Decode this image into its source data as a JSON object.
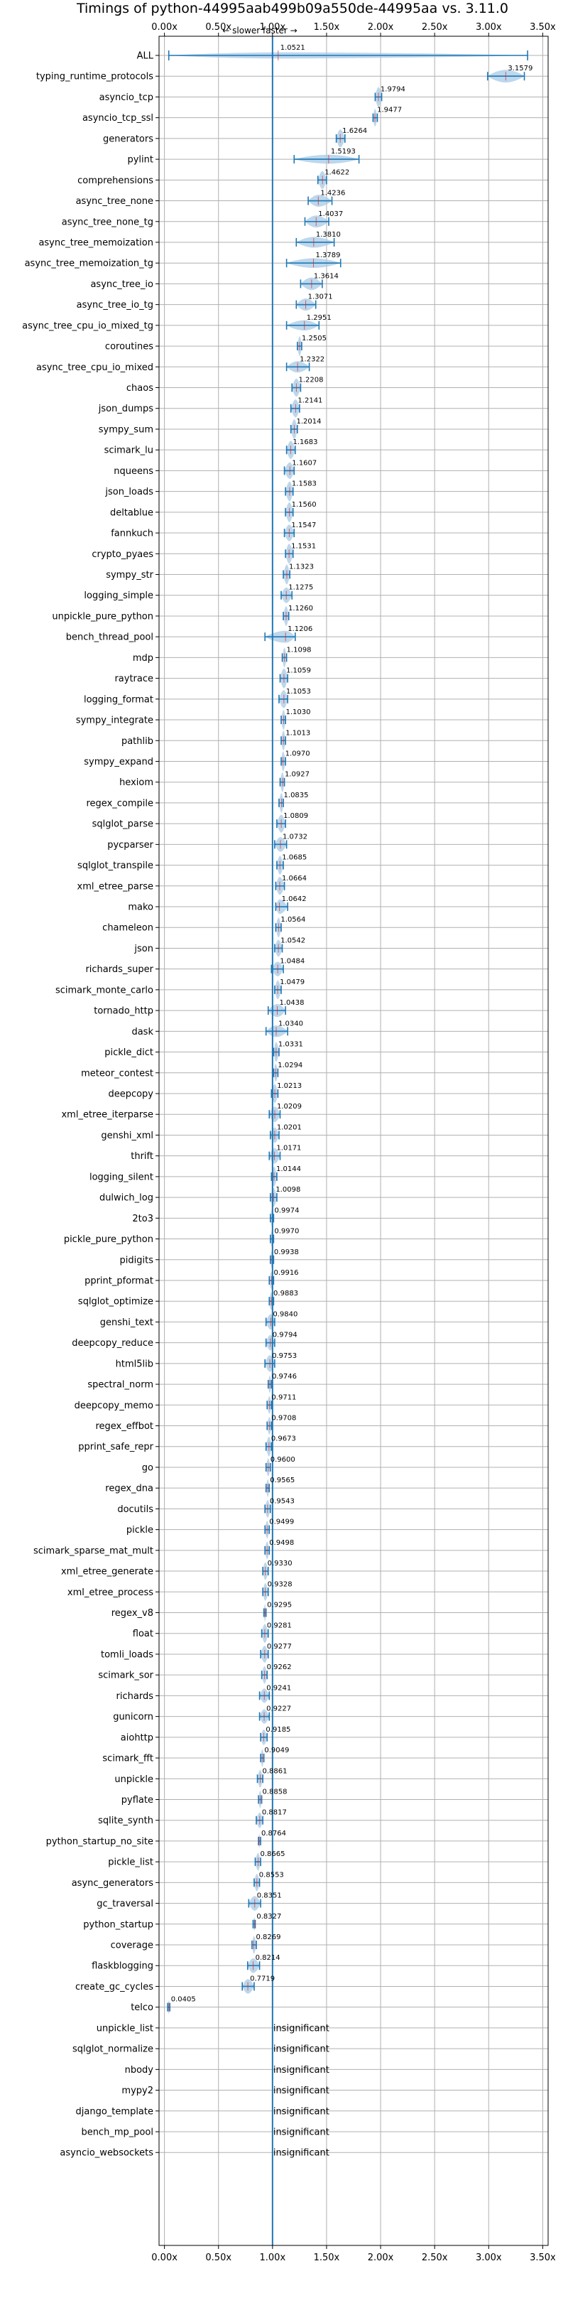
{
  "chart_data": {
    "type": "violin",
    "title": "Timings of python-44995aab499b09a550de-44995aa vs. 3.11.0",
    "direction_label": "← slower  faster →",
    "xlim": [
      -0.05,
      3.55
    ],
    "x_ticks": [
      0.0,
      0.5,
      1.0,
      1.5,
      2.0,
      2.5,
      3.0,
      3.5
    ],
    "x_tick_labels": [
      "0.00x",
      "0.50x",
      "1.00x",
      "1.50x",
      "2.00x",
      "2.50x",
      "3.00x",
      "3.50x"
    ],
    "reference_line": 1.0,
    "grid": true,
    "colors": {
      "violin": "#a7c9e6",
      "line": "#1f77b4",
      "median": "#d62728",
      "grid": "#b0b0b0"
    },
    "insignificant_label": "insignificant",
    "benchmarks": [
      {
        "name": "ALL",
        "label": "1.0521",
        "value": 1.0521,
        "min": 0.04,
        "max": 3.36,
        "spread": 0.08
      },
      {
        "name": "typing_runtime_protocols",
        "label": "3.1579",
        "value": 3.1579,
        "min": 2.99,
        "max": 3.33,
        "spread": 0.12
      },
      {
        "name": "asyncio_tcp",
        "label": "1.9794",
        "value": 1.9794,
        "min": 1.95,
        "max": 2.01,
        "spread": 0.05
      },
      {
        "name": "asyncio_tcp_ssl",
        "label": "1.9477",
        "value": 1.9477,
        "min": 1.93,
        "max": 1.97,
        "spread": 0.03
      },
      {
        "name": "generators",
        "label": "1.6264",
        "value": 1.6264,
        "min": 1.59,
        "max": 1.67,
        "spread": 0.05
      },
      {
        "name": "pylint",
        "label": "1.5193",
        "value": 1.5193,
        "min": 1.2,
        "max": 1.8,
        "spread": 0.1
      },
      {
        "name": "comprehensions",
        "label": "1.4622",
        "value": 1.4622,
        "min": 1.42,
        "max": 1.5,
        "spread": 0.05
      },
      {
        "name": "async_tree_none",
        "label": "1.4236",
        "value": 1.4236,
        "min": 1.33,
        "max": 1.55,
        "spread": 0.07
      },
      {
        "name": "async_tree_none_tg",
        "label": "1.4037",
        "value": 1.4037,
        "min": 1.3,
        "max": 1.52,
        "spread": 0.07
      },
      {
        "name": "async_tree_memoization",
        "label": "1.3810",
        "value": 1.381,
        "min": 1.22,
        "max": 1.57,
        "spread": 0.09
      },
      {
        "name": "async_tree_memoization_tg",
        "label": "1.3789",
        "value": 1.3789,
        "min": 1.13,
        "max": 1.63,
        "spread": 0.1
      },
      {
        "name": "async_tree_io",
        "label": "1.3614",
        "value": 1.3614,
        "min": 1.26,
        "max": 1.46,
        "spread": 0.07
      },
      {
        "name": "async_tree_io_tg",
        "label": "1.3071",
        "value": 1.3071,
        "min": 1.22,
        "max": 1.4,
        "spread": 0.06
      },
      {
        "name": "async_tree_cpu_io_mixed_tg",
        "label": "1.2951",
        "value": 1.2951,
        "min": 1.13,
        "max": 1.43,
        "spread": 0.07
      },
      {
        "name": "coroutines",
        "label": "1.2505",
        "value": 1.2505,
        "min": 1.23,
        "max": 1.27,
        "spread": 0.04
      },
      {
        "name": "async_tree_cpu_io_mixed",
        "label": "1.2322",
        "value": 1.2322,
        "min": 1.13,
        "max": 1.34,
        "spread": 0.06
      },
      {
        "name": "chaos",
        "label": "1.2208",
        "value": 1.2208,
        "min": 1.18,
        "max": 1.26,
        "spread": 0.05
      },
      {
        "name": "json_dumps",
        "label": "1.2141",
        "value": 1.2141,
        "min": 1.17,
        "max": 1.25,
        "spread": 0.05
      },
      {
        "name": "sympy_sum",
        "label": "1.2014",
        "value": 1.2014,
        "min": 1.17,
        "max": 1.23,
        "spread": 0.05
      },
      {
        "name": "scimark_lu",
        "label": "1.1683",
        "value": 1.1683,
        "min": 1.13,
        "max": 1.21,
        "spread": 0.05
      },
      {
        "name": "nqueens",
        "label": "1.1607",
        "value": 1.1607,
        "min": 1.11,
        "max": 1.2,
        "spread": 0.05
      },
      {
        "name": "json_loads",
        "label": "1.1583",
        "value": 1.1583,
        "min": 1.12,
        "max": 1.19,
        "spread": 0.05
      },
      {
        "name": "deltablue",
        "label": "1.1560",
        "value": 1.156,
        "min": 1.12,
        "max": 1.19,
        "spread": 0.05
      },
      {
        "name": "fannkuch",
        "label": "1.1547",
        "value": 1.1547,
        "min": 1.11,
        "max": 1.2,
        "spread": 0.05
      },
      {
        "name": "crypto_pyaes",
        "label": "1.1531",
        "value": 1.1531,
        "min": 1.12,
        "max": 1.19,
        "spread": 0.05
      },
      {
        "name": "sympy_str",
        "label": "1.1323",
        "value": 1.1323,
        "min": 1.1,
        "max": 1.16,
        "spread": 0.05
      },
      {
        "name": "logging_simple",
        "label": "1.1275",
        "value": 1.1275,
        "min": 1.08,
        "max": 1.18,
        "spread": 0.05
      },
      {
        "name": "unpickle_pure_python",
        "label": "1.1260",
        "value": 1.126,
        "min": 1.1,
        "max": 1.15,
        "spread": 0.05
      },
      {
        "name": "bench_thread_pool",
        "label": "1.1206",
        "value": 1.1206,
        "min": 0.93,
        "max": 1.21,
        "spread": 0.09
      },
      {
        "name": "mdp",
        "label": "1.1098",
        "value": 1.1098,
        "min": 1.09,
        "max": 1.13,
        "spread": 0.04
      },
      {
        "name": "raytrace",
        "label": "1.1059",
        "value": 1.1059,
        "min": 1.07,
        "max": 1.14,
        "spread": 0.05
      },
      {
        "name": "logging_format",
        "label": "1.1053",
        "value": 1.1053,
        "min": 1.06,
        "max": 1.14,
        "spread": 0.05
      },
      {
        "name": "sympy_integrate",
        "label": "1.1030",
        "value": 1.103,
        "min": 1.08,
        "max": 1.12,
        "spread": 0.04
      },
      {
        "name": "pathlib",
        "label": "1.1013",
        "value": 1.1013,
        "min": 1.08,
        "max": 1.12,
        "spread": 0.04
      },
      {
        "name": "sympy_expand",
        "label": "1.0970",
        "value": 1.097,
        "min": 1.08,
        "max": 1.12,
        "spread": 0.04
      },
      {
        "name": "hexiom",
        "label": "1.0927",
        "value": 1.0927,
        "min": 1.07,
        "max": 1.11,
        "spread": 0.04
      },
      {
        "name": "regex_compile",
        "label": "1.0835",
        "value": 1.0835,
        "min": 1.06,
        "max": 1.1,
        "spread": 0.04
      },
      {
        "name": "sqlglot_parse",
        "label": "1.0809",
        "value": 1.0809,
        "min": 1.04,
        "max": 1.12,
        "spread": 0.05
      },
      {
        "name": "pycparser",
        "label": "1.0732",
        "value": 1.0732,
        "min": 1.02,
        "max": 1.13,
        "spread": 0.05
      },
      {
        "name": "sqlglot_transpile",
        "label": "1.0685",
        "value": 1.0685,
        "min": 1.04,
        "max": 1.1,
        "spread": 0.04
      },
      {
        "name": "xml_etree_parse",
        "label": "1.0664",
        "value": 1.0664,
        "min": 1.03,
        "max": 1.11,
        "spread": 0.05
      },
      {
        "name": "mako",
        "label": "1.0642",
        "value": 1.0642,
        "min": 1.03,
        "max": 1.14,
        "spread": 0.05
      },
      {
        "name": "chameleon",
        "label": "1.0564",
        "value": 1.0564,
        "min": 1.03,
        "max": 1.08,
        "spread": 0.04
      },
      {
        "name": "json",
        "label": "1.0542",
        "value": 1.0542,
        "min": 1.02,
        "max": 1.09,
        "spread": 0.04
      },
      {
        "name": "richards_super",
        "label": "1.0484",
        "value": 1.0484,
        "min": 0.99,
        "max": 1.1,
        "spread": 0.05
      },
      {
        "name": "scimark_monte_carlo",
        "label": "1.0479",
        "value": 1.0479,
        "min": 1.02,
        "max": 1.08,
        "spread": 0.04
      },
      {
        "name": "tornado_http",
        "label": "1.0438",
        "value": 1.0438,
        "min": 0.96,
        "max": 1.12,
        "spread": 0.06
      },
      {
        "name": "dask",
        "label": "1.0340",
        "value": 1.034,
        "min": 0.94,
        "max": 1.14,
        "spread": 0.06
      },
      {
        "name": "pickle_dict",
        "label": "1.0331",
        "value": 1.0331,
        "min": 1.01,
        "max": 1.06,
        "spread": 0.04
      },
      {
        "name": "meteor_contest",
        "label": "1.0294",
        "value": 1.0294,
        "min": 1.01,
        "max": 1.05,
        "spread": 0.03
      },
      {
        "name": "deepcopy",
        "label": "1.0213",
        "value": 1.0213,
        "min": 0.99,
        "max": 1.05,
        "spread": 0.04
      },
      {
        "name": "xml_etree_iterparse",
        "label": "1.0209",
        "value": 1.0209,
        "min": 0.97,
        "max": 1.07,
        "spread": 0.05
      },
      {
        "name": "genshi_xml",
        "label": "1.0201",
        "value": 1.0201,
        "min": 0.98,
        "max": 1.06,
        "spread": 0.04
      },
      {
        "name": "thrift",
        "label": "1.0171",
        "value": 1.0171,
        "min": 0.97,
        "max": 1.07,
        "spread": 0.05
      },
      {
        "name": "logging_silent",
        "label": "1.0144",
        "value": 1.0144,
        "min": 0.99,
        "max": 1.04,
        "spread": 0.04
      },
      {
        "name": "dulwich_log",
        "label": "1.0098",
        "value": 1.0098,
        "min": 0.98,
        "max": 1.04,
        "spread": 0.04
      },
      {
        "name": "2to3",
        "label": "0.9974",
        "value": 0.9974,
        "min": 0.98,
        "max": 1.01,
        "spread": 0.03
      },
      {
        "name": "pickle_pure_python",
        "label": "0.9970",
        "value": 0.997,
        "min": 0.98,
        "max": 1.01,
        "spread": 0.03
      },
      {
        "name": "pidigits",
        "label": "0.9938",
        "value": 0.9938,
        "min": 0.98,
        "max": 1.01,
        "spread": 0.03
      },
      {
        "name": "pprint_pformat",
        "label": "0.9916",
        "value": 0.9916,
        "min": 0.97,
        "max": 1.01,
        "spread": 0.03
      },
      {
        "name": "sqlglot_optimize",
        "label": "0.9883",
        "value": 0.9883,
        "min": 0.97,
        "max": 1.01,
        "spread": 0.03
      },
      {
        "name": "genshi_text",
        "label": "0.9840",
        "value": 0.984,
        "min": 0.94,
        "max": 1.02,
        "spread": 0.04
      },
      {
        "name": "deepcopy_reduce",
        "label": "0.9794",
        "value": 0.9794,
        "min": 0.94,
        "max": 1.02,
        "spread": 0.04
      },
      {
        "name": "html5lib",
        "label": "0.9753",
        "value": 0.9753,
        "min": 0.93,
        "max": 1.02,
        "spread": 0.05
      },
      {
        "name": "spectral_norm",
        "label": "0.9746",
        "value": 0.9746,
        "min": 0.96,
        "max": 0.99,
        "spread": 0.03
      },
      {
        "name": "deepcopy_memo",
        "label": "0.9711",
        "value": 0.9711,
        "min": 0.95,
        "max": 0.99,
        "spread": 0.03
      },
      {
        "name": "regex_effbot",
        "label": "0.9708",
        "value": 0.9708,
        "min": 0.95,
        "max": 0.99,
        "spread": 0.03
      },
      {
        "name": "pprint_safe_repr",
        "label": "0.9673",
        "value": 0.9673,
        "min": 0.94,
        "max": 0.99,
        "spread": 0.04
      },
      {
        "name": "go",
        "label": "0.9600",
        "value": 0.96,
        "min": 0.94,
        "max": 0.98,
        "spread": 0.03
      },
      {
        "name": "regex_dna",
        "label": "0.9565",
        "value": 0.9565,
        "min": 0.94,
        "max": 0.97,
        "spread": 0.03
      },
      {
        "name": "docutils",
        "label": "0.9543",
        "value": 0.9543,
        "min": 0.93,
        "max": 0.98,
        "spread": 0.03
      },
      {
        "name": "pickle",
        "label": "0.9499",
        "value": 0.9499,
        "min": 0.93,
        "max": 0.97,
        "spread": 0.03
      },
      {
        "name": "scimark_sparse_mat_mult",
        "label": "0.9498",
        "value": 0.9498,
        "min": 0.93,
        "max": 0.97,
        "spread": 0.03
      },
      {
        "name": "xml_etree_generate",
        "label": "0.9330",
        "value": 0.933,
        "min": 0.91,
        "max": 0.96,
        "spread": 0.03
      },
      {
        "name": "xml_etree_process",
        "label": "0.9328",
        "value": 0.9328,
        "min": 0.91,
        "max": 0.96,
        "spread": 0.03
      },
      {
        "name": "regex_v8",
        "label": "0.9295",
        "value": 0.9295,
        "min": 0.92,
        "max": 0.94,
        "spread": 0.03
      },
      {
        "name": "float",
        "label": "0.9281",
        "value": 0.9281,
        "min": 0.9,
        "max": 0.96,
        "spread": 0.04
      },
      {
        "name": "tomli_loads",
        "label": "0.9277",
        "value": 0.9277,
        "min": 0.89,
        "max": 0.96,
        "spread": 0.04
      },
      {
        "name": "scimark_sor",
        "label": "0.9262",
        "value": 0.9262,
        "min": 0.9,
        "max": 0.95,
        "spread": 0.03
      },
      {
        "name": "richards",
        "label": "0.9241",
        "value": 0.9241,
        "min": 0.88,
        "max": 0.97,
        "spread": 0.04
      },
      {
        "name": "gunicorn",
        "label": "0.9227",
        "value": 0.9227,
        "min": 0.88,
        "max": 0.97,
        "spread": 0.04
      },
      {
        "name": "aiohttp",
        "label": "0.9185",
        "value": 0.9185,
        "min": 0.89,
        "max": 0.95,
        "spread": 0.03
      },
      {
        "name": "scimark_fft",
        "label": "0.9049",
        "value": 0.9049,
        "min": 0.89,
        "max": 0.92,
        "spread": 0.03
      },
      {
        "name": "unpickle",
        "label": "0.8861",
        "value": 0.8861,
        "min": 0.86,
        "max": 0.91,
        "spread": 0.03
      },
      {
        "name": "pyflate",
        "label": "0.8858",
        "value": 0.8858,
        "min": 0.87,
        "max": 0.9,
        "spread": 0.03
      },
      {
        "name": "sqlite_synth",
        "label": "0.8817",
        "value": 0.8817,
        "min": 0.85,
        "max": 0.91,
        "spread": 0.03
      },
      {
        "name": "python_startup_no_site",
        "label": "0.8764",
        "value": 0.8764,
        "min": 0.87,
        "max": 0.89,
        "spread": 0.02
      },
      {
        "name": "pickle_list",
        "label": "0.8665",
        "value": 0.8665,
        "min": 0.84,
        "max": 0.89,
        "spread": 0.03
      },
      {
        "name": "async_generators",
        "label": "0.8553",
        "value": 0.8553,
        "min": 0.83,
        "max": 0.88,
        "spread": 0.03
      },
      {
        "name": "gc_traversal",
        "label": "0.8351",
        "value": 0.8351,
        "min": 0.78,
        "max": 0.89,
        "spread": 0.05
      },
      {
        "name": "python_startup",
        "label": "0.8327",
        "value": 0.8327,
        "min": 0.82,
        "max": 0.84,
        "spread": 0.02
      },
      {
        "name": "coverage",
        "label": "0.8269",
        "value": 0.8269,
        "min": 0.81,
        "max": 0.85,
        "spread": 0.03
      },
      {
        "name": "flaskblogging",
        "label": "0.8214",
        "value": 0.8214,
        "min": 0.77,
        "max": 0.88,
        "spread": 0.05
      },
      {
        "name": "create_gc_cycles",
        "label": "0.7719",
        "value": 0.7719,
        "min": 0.72,
        "max": 0.83,
        "spread": 0.05
      },
      {
        "name": "telco",
        "label": "0.0405",
        "value": 0.0405,
        "min": 0.03,
        "max": 0.05,
        "spread": 0.02
      },
      {
        "name": "unpickle_list",
        "label": "insignificant",
        "value": null
      },
      {
        "name": "sqlglot_normalize",
        "label": "insignificant",
        "value": null
      },
      {
        "name": "nbody",
        "label": "insignificant",
        "value": null
      },
      {
        "name": "mypy2",
        "label": "insignificant",
        "value": null
      },
      {
        "name": "django_template",
        "label": "insignificant",
        "value": null
      },
      {
        "name": "bench_mp_pool",
        "label": "insignificant",
        "value": null
      },
      {
        "name": "asyncio_websockets",
        "label": "insignificant",
        "value": null
      }
    ]
  }
}
